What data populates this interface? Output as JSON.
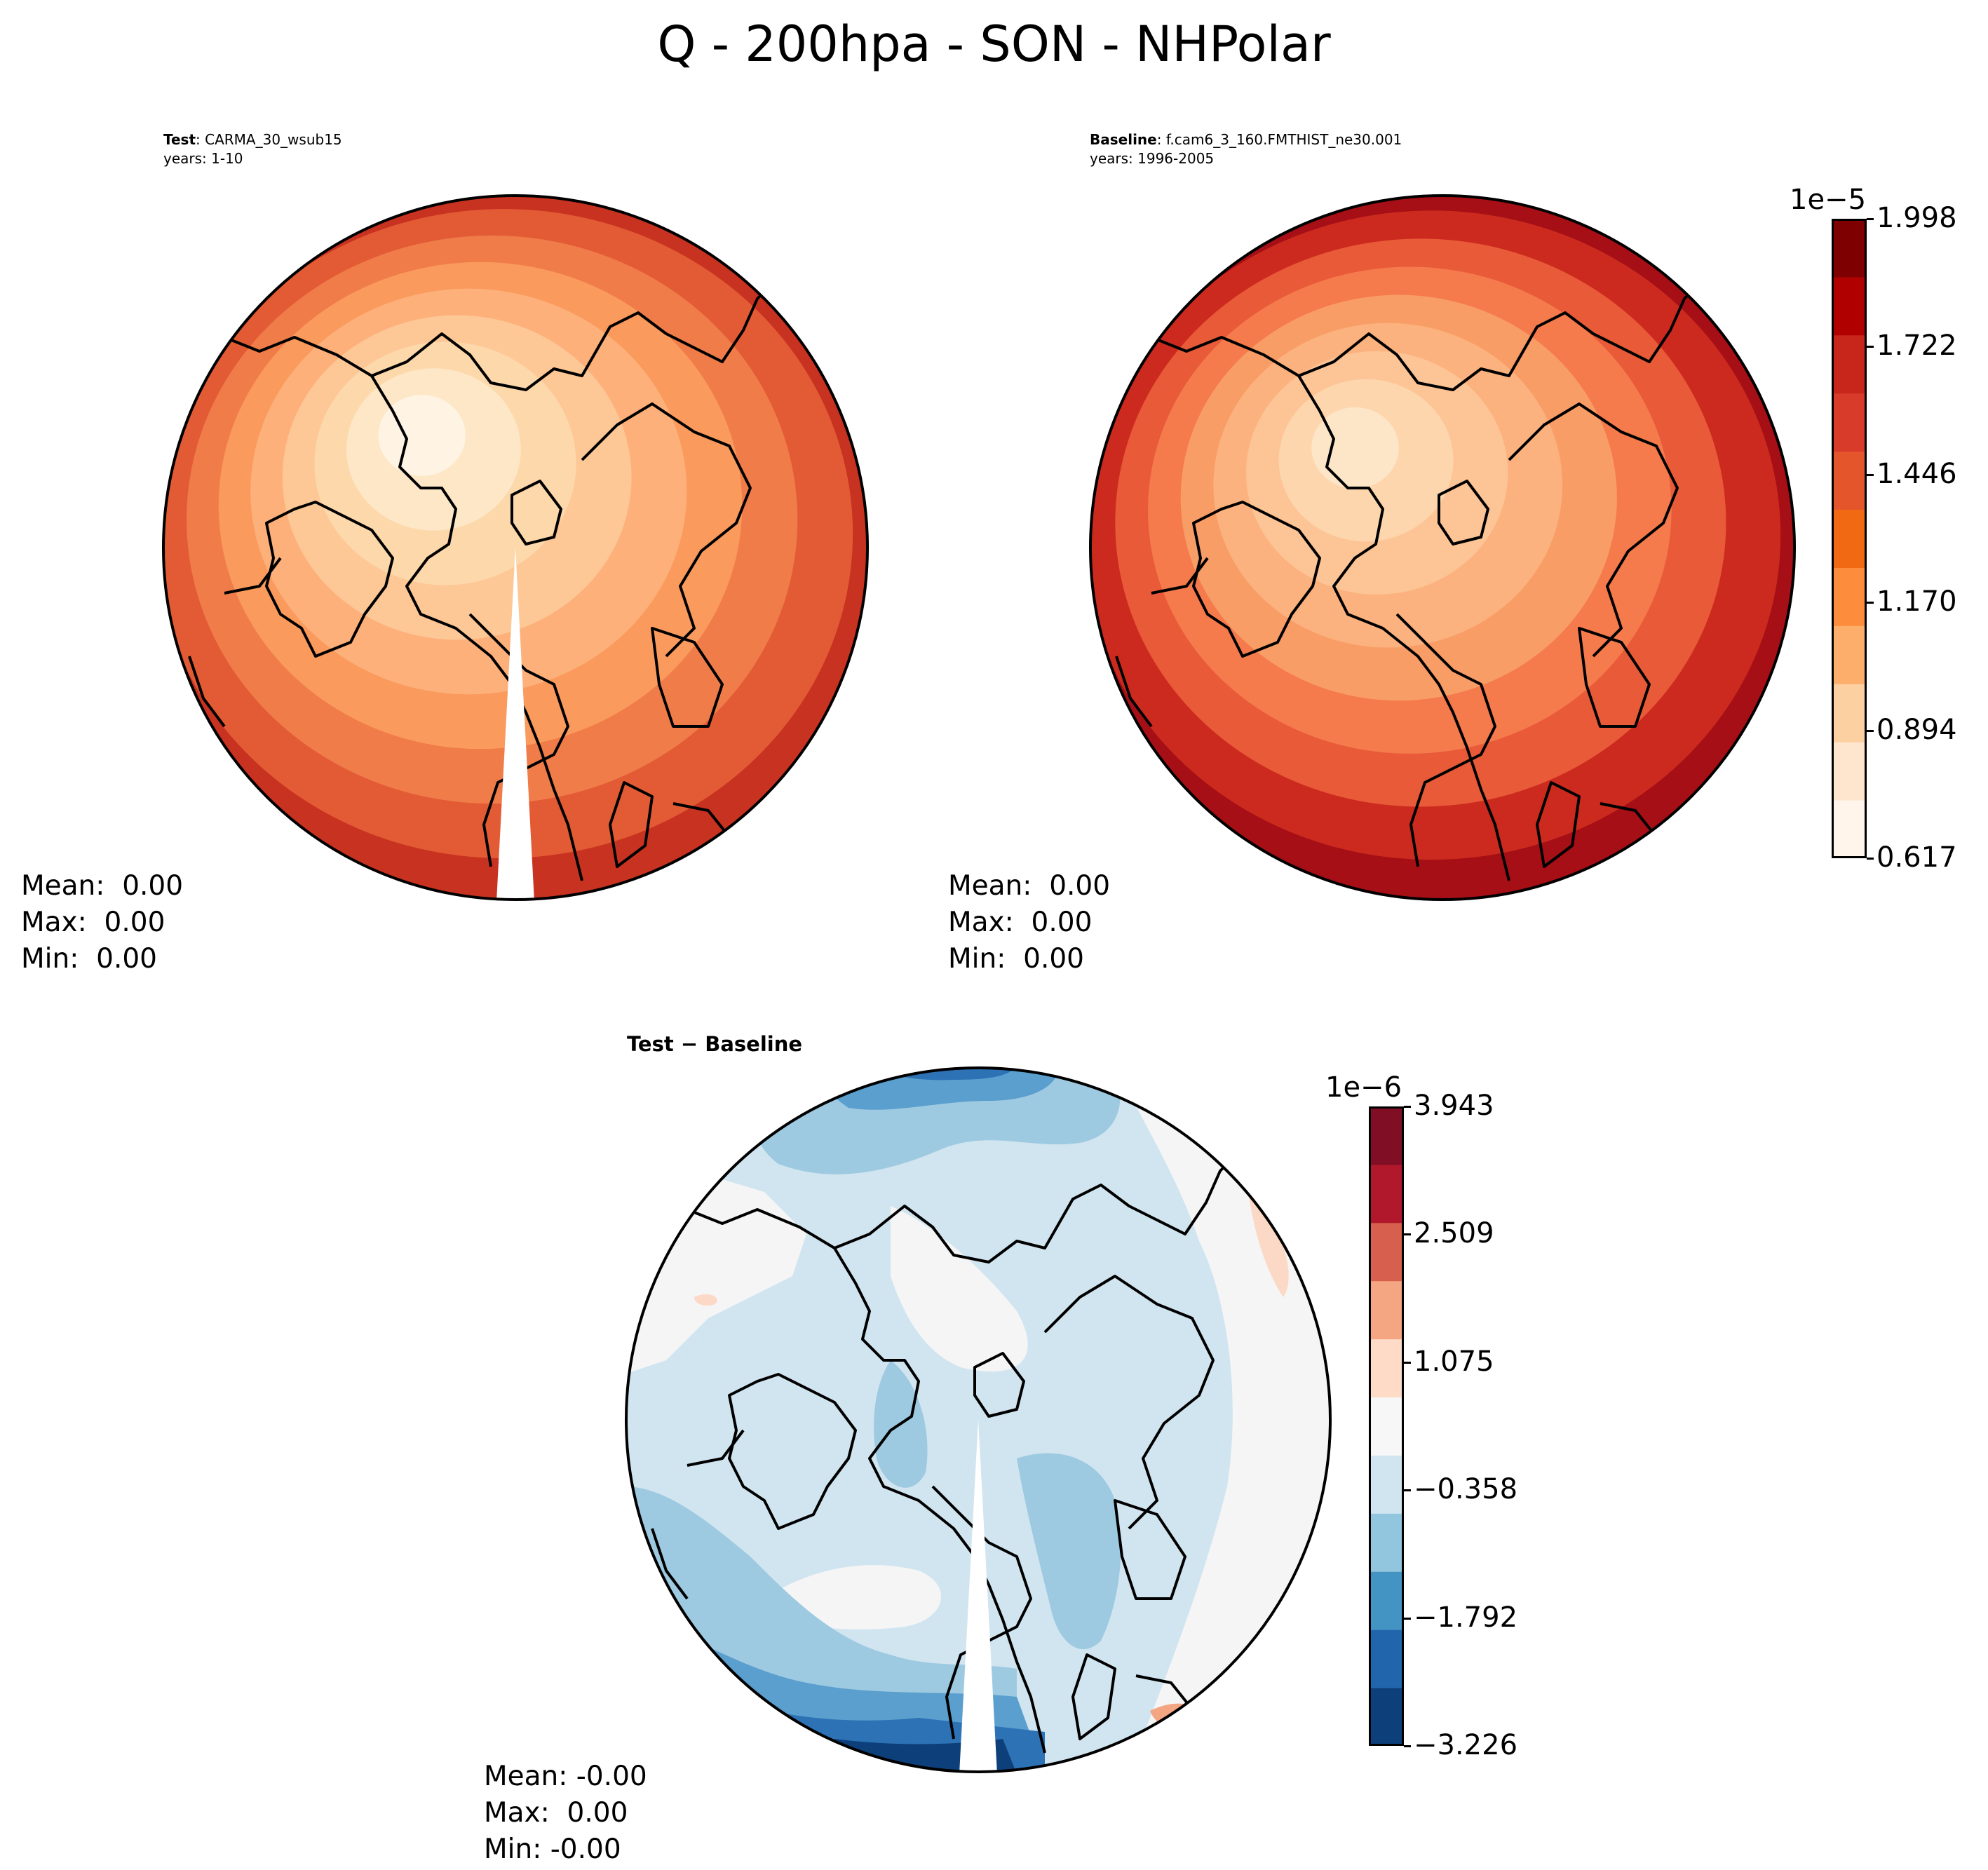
{
  "figure": {
    "title": "Q - 200hpa - SON - NHPolar"
  },
  "panels": {
    "test": {
      "label_bold": "Test",
      "label_name": ": CARMA_30_wsub15",
      "years": "years: 1-10",
      "mean": "Mean:  0.00",
      "max": "Max:  0.00",
      "min": "Min:  0.00"
    },
    "baseline": {
      "label_bold": "Baseline",
      "label_name": ": f.cam6_3_160.FMTHIST_ne30.001",
      "years": "years: 1996-2005",
      "mean": "Mean:  0.00",
      "max": "Max:  0.00",
      "min": "Min:  0.00"
    },
    "diff": {
      "title": "Test − Baseline",
      "mean": "Mean: -0.00",
      "max": "Max:  0.00",
      "min": "Min: -0.00"
    }
  },
  "colorbars": {
    "top": {
      "exponent": "1e−5",
      "ticks": [
        "0.617",
        "0.894",
        "1.170",
        "1.446",
        "1.722",
        "1.998"
      ],
      "colors": [
        "#fff5eb",
        "#fee6ce",
        "#fdd0a2",
        "#fdae6b",
        "#fd8d3c",
        "#f16913",
        "#e4552b",
        "#d93b2b",
        "#c8261b",
        "#b00000",
        "#7f0000"
      ]
    },
    "bottom": {
      "exponent": "1e−6",
      "ticks": [
        "−3.226",
        "−1.792",
        "−0.358",
        "1.075",
        "2.509",
        "3.943"
      ],
      "colors": [
        "#0d3f7a",
        "#2166ac",
        "#4393c3",
        "#92c5de",
        "#d1e5f0",
        "#f7f7f7",
        "#fddbc7",
        "#f4a582",
        "#d6604d",
        "#b2182b",
        "#800f26"
      ]
    }
  },
  "maps": {
    "test_rings": [
      "#c83220",
      "#e35b35",
      "#f07c4a",
      "#fa9a5c",
      "#fdb07a",
      "#fdc796",
      "#fdd8ab",
      "#fde7c6",
      "#fff3e3"
    ],
    "baseline_rings": [
      "#a50f15",
      "#cc2a1e",
      "#e85a38",
      "#f57a4c",
      "#f99d66",
      "#fcb27e",
      "#fdc495",
      "#fdd6ad",
      "#fde6c8"
    ],
    "diff_colors": [
      "#0d3f7a",
      "#2c72b5",
      "#5a9fcd",
      "#9ecae1",
      "#d1e5f0",
      "#f5f5f5",
      "#fcd8c6",
      "#f4a582"
    ]
  }
}
